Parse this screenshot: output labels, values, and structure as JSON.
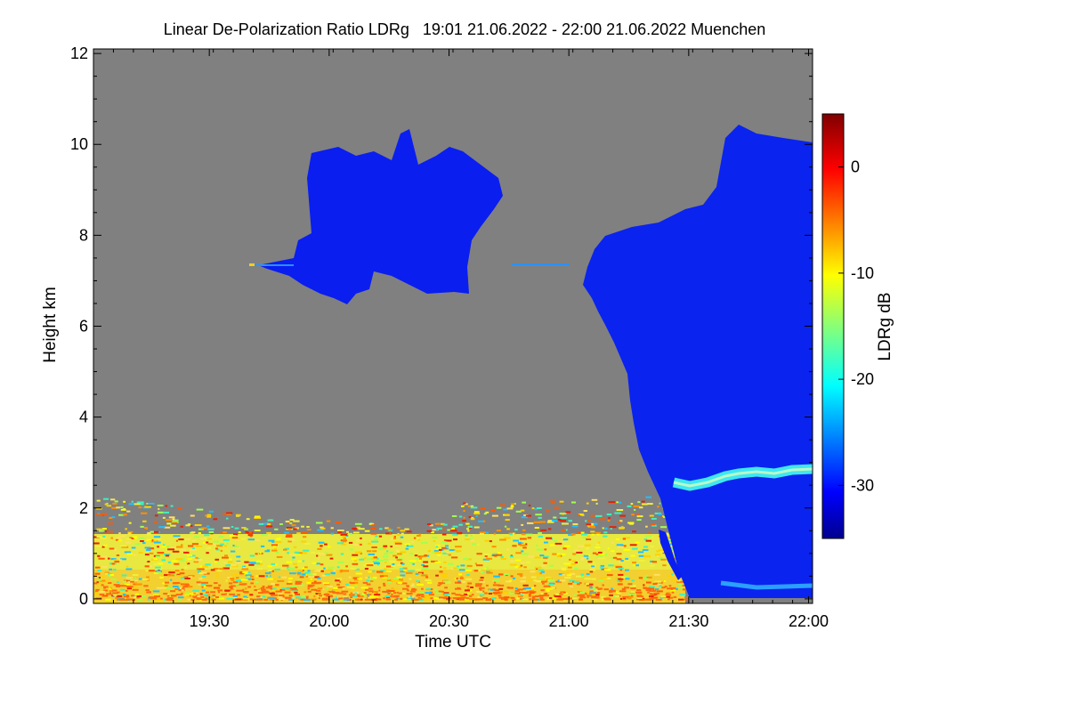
{
  "chart_data": {
    "type": "heatmap",
    "title": "Linear De-Polarization Ratio LDRg   19:01 21.06.2022 - 22:00 21.06.2022 Muenchen",
    "xlabel": "Time UTC",
    "ylabel": "Height km",
    "xlim": [
      "19:01",
      "22:01"
    ],
    "ylim": [
      -0.1,
      12.1
    ],
    "xticks": [
      "19:30",
      "20:00",
      "20:30",
      "21:00",
      "21:30",
      "22:00"
    ],
    "yticks": [
      "0",
      "2",
      "4",
      "6",
      "8",
      "10",
      "12"
    ],
    "colorbar": {
      "label": "LDRg dB",
      "range": [
        -35,
        5
      ],
      "ticks": [
        "0",
        "-10",
        "-20",
        "-30"
      ],
      "colormap": "jet"
    },
    "missing_color": "#808080",
    "features": [
      {
        "name": "cirrus-cloud",
        "time_start": "19:41",
        "time_end": "20:45",
        "base_km": 6.6,
        "top_km": 10.2,
        "ldr_db": -31
      },
      {
        "name": "ice-cloud-deep",
        "time_start": "21:07",
        "time_end": "22:00",
        "base_km": 0.3,
        "top_km": 10.4,
        "ldr_db": -31
      },
      {
        "name": "melting-layer",
        "time_start": "21:25",
        "time_end": "22:00",
        "height_km": 2.7,
        "ldr_db": -22
      },
      {
        "name": "boundary-layer-scatter",
        "time_start": "19:01",
        "time_end": "21:27",
        "base_km": 0.0,
        "top_km": 2.3,
        "ldr_db": -8
      }
    ]
  }
}
